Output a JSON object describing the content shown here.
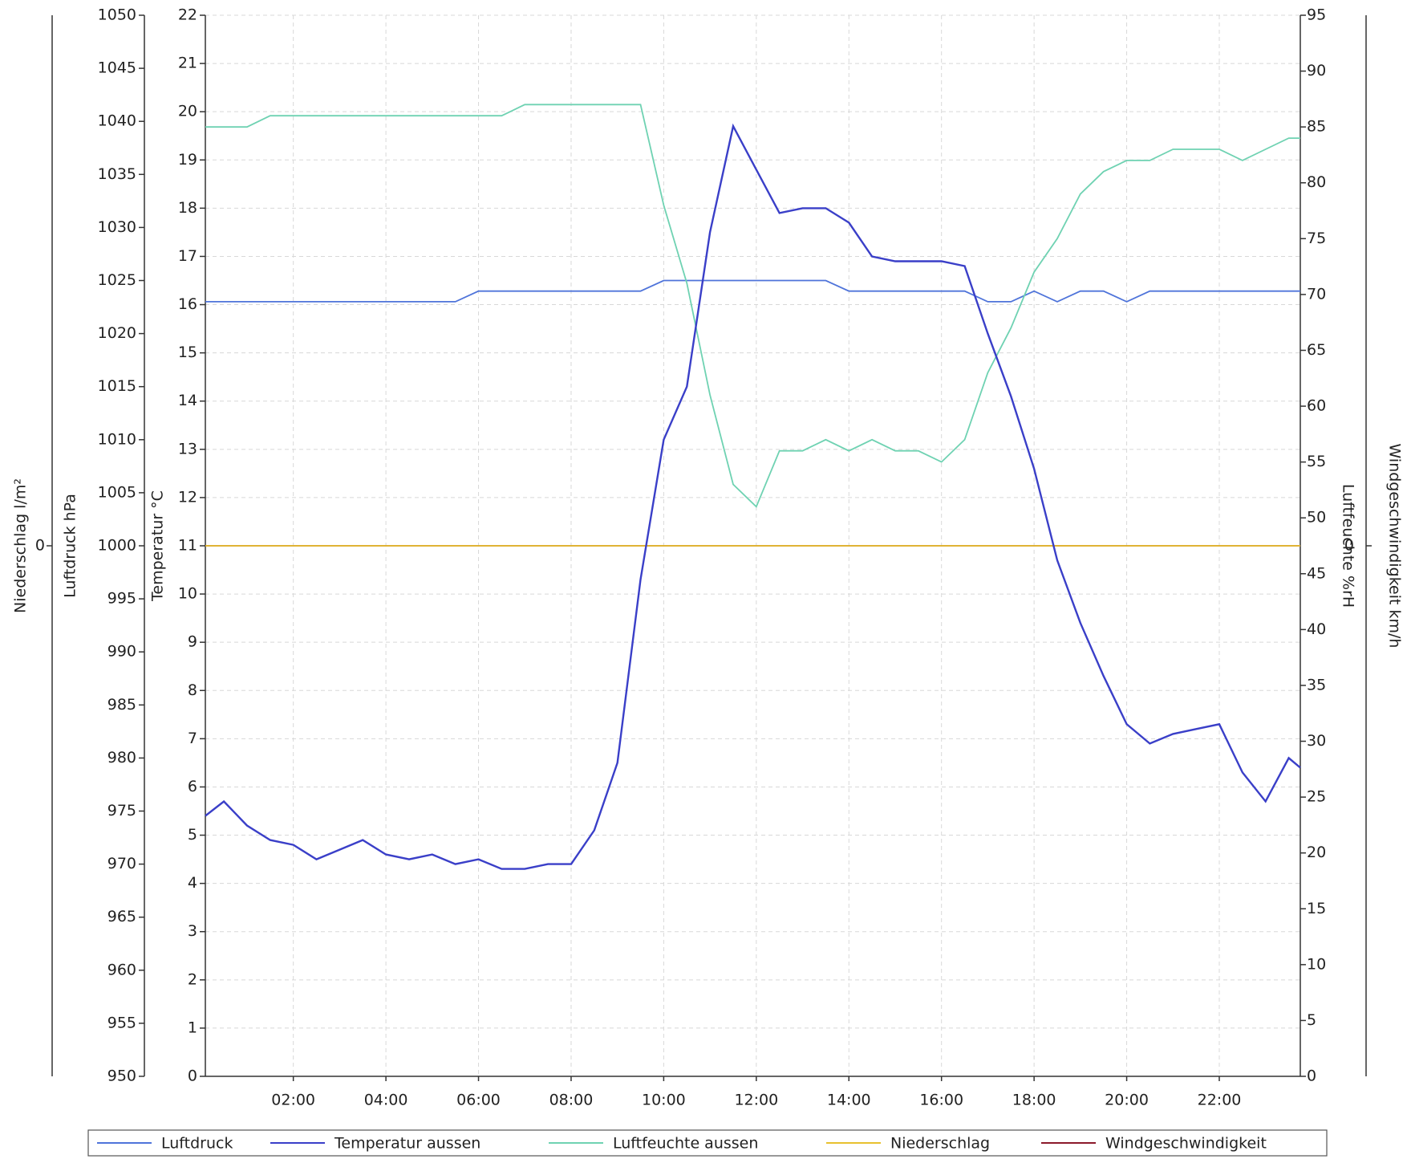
{
  "chart_data": {
    "type": "line",
    "x": [
      0.1,
      0.5,
      1,
      1.5,
      2,
      2.5,
      3,
      3.5,
      4,
      4.5,
      5,
      5.5,
      6,
      6.5,
      7,
      7.5,
      8,
      8.5,
      9,
      9.5,
      10,
      10.5,
      11,
      11.5,
      12,
      12.5,
      13,
      13.5,
      14,
      14.5,
      15,
      15.5,
      16,
      16.5,
      17,
      17.5,
      18,
      18.5,
      19,
      19.5,
      20,
      20.5,
      21,
      21.5,
      22,
      22.5,
      23,
      23.5,
      23.75
    ],
    "xlim": [
      0.1,
      23.75
    ],
    "xticks": [
      {
        "value": 2,
        "label": "02:00"
      },
      {
        "value": 4,
        "label": "04:00"
      },
      {
        "value": 6,
        "label": "06:00"
      },
      {
        "value": 8,
        "label": "08:00"
      },
      {
        "value": 10,
        "label": "10:00"
      },
      {
        "value": 12,
        "label": "12:00"
      },
      {
        "value": 14,
        "label": "14:00"
      },
      {
        "value": 16,
        "label": "16:00"
      },
      {
        "value": 18,
        "label": "18:00"
      },
      {
        "value": 20,
        "label": "20:00"
      },
      {
        "value": 22,
        "label": "22:00"
      }
    ],
    "grid": true,
    "axes": [
      {
        "label": "Niederschlag  l/m²",
        "lim": [
          -1,
          1
        ],
        "ticks": [
          0
        ]
      },
      {
        "label": "Luftdruck  hPa",
        "lim": [
          950,
          1050
        ],
        "ticks": [
          950,
          955,
          960,
          965,
          970,
          975,
          980,
          985,
          990,
          995,
          1000,
          1005,
          1010,
          1015,
          1020,
          1025,
          1030,
          1035,
          1040,
          1045,
          1050
        ]
      },
      {
        "label": "Temperatur  °C",
        "lim": [
          0,
          22
        ],
        "ticks": [
          0,
          1,
          2,
          3,
          4,
          5,
          6,
          7,
          8,
          9,
          10,
          11,
          12,
          13,
          14,
          15,
          16,
          17,
          18,
          19,
          20,
          21,
          22
        ]
      },
      {
        "label": "Luftfeuchte  %rH",
        "lim": [
          0,
          95
        ],
        "ticks": [
          0,
          5,
          10,
          15,
          20,
          25,
          30,
          35,
          40,
          45,
          50,
          55,
          60,
          65,
          70,
          75,
          80,
          85,
          90,
          95
        ]
      },
      {
        "label": "Windgeschwindigkeit  km/h",
        "lim": [
          -1,
          1
        ],
        "ticks": [
          0
        ]
      }
    ],
    "series": [
      {
        "name": "Luftdruck",
        "color": "#4f74da",
        "axis": 1,
        "values": [
          1023,
          1023,
          1023,
          1023,
          1023,
          1023,
          1023,
          1023,
          1023,
          1023,
          1023,
          1023,
          1024,
          1024,
          1024,
          1024,
          1024,
          1024,
          1024,
          1024,
          1025,
          1025,
          1025,
          1025,
          1025,
          1025,
          1025,
          1025,
          1024,
          1024,
          1024,
          1024,
          1024,
          1024,
          1023,
          1023,
          1024,
          1023,
          1024,
          1024,
          1023,
          1024,
          1024,
          1024,
          1024,
          1024,
          1024,
          1024,
          1024
        ]
      },
      {
        "name": "Temperatur aussen",
        "color": "#3a3fc8",
        "axis": 2,
        "values": [
          5.4,
          5.7,
          5.2,
          4.9,
          4.8,
          4.5,
          4.7,
          4.9,
          4.6,
          4.5,
          4.6,
          4.4,
          4.5,
          4.3,
          4.3,
          4.4,
          4.4,
          5.1,
          6.5,
          10.3,
          13.2,
          14.3,
          17.5,
          19.7,
          18.8,
          17.9,
          18.0,
          18.0,
          17.7,
          17.0,
          16.9,
          16.9,
          16.9,
          16.8,
          15.4,
          14.1,
          12.6,
          10.7,
          9.4,
          8.3,
          7.3,
          6.9,
          7.1,
          7.2,
          7.3,
          6.3,
          5.7,
          6.6,
          6.4
        ]
      },
      {
        "name": "Luftfeuchte aussen",
        "color": "#6fd2b2",
        "axis": 3,
        "values": [
          85,
          85,
          85,
          86,
          86,
          86,
          86,
          86,
          86,
          86,
          86,
          86,
          86,
          86,
          87,
          87,
          87,
          87,
          87,
          87,
          78,
          71,
          61,
          53,
          51,
          56,
          56,
          57,
          56,
          57,
          56,
          56,
          55,
          57,
          63,
          67,
          72,
          75,
          79,
          81,
          82,
          82,
          83,
          83,
          83,
          82,
          83,
          84,
          84
        ]
      },
      {
        "name": "Niederschlag",
        "color": "#e8c12f",
        "axis": 0,
        "values": [
          0,
          0,
          0,
          0,
          0,
          0,
          0,
          0,
          0,
          0,
          0,
          0,
          0,
          0,
          0,
          0,
          0,
          0,
          0,
          0,
          0,
          0,
          0,
          0,
          0,
          0,
          0,
          0,
          0,
          0,
          0,
          0,
          0,
          0,
          0,
          0,
          0,
          0,
          0,
          0,
          0,
          0,
          0,
          0,
          0,
          0,
          0,
          0,
          0
        ]
      },
      {
        "name": "Windgeschwindigkeit",
        "color": "#8b1a2b",
        "axis": 4,
        "values": [
          0,
          0,
          0,
          0,
          0,
          0,
          0,
          0,
          0,
          0,
          0,
          0,
          0,
          0,
          0,
          0,
          0,
          0,
          0,
          0,
          0,
          0,
          0,
          0,
          0,
          0,
          0,
          0,
          0,
          0,
          0,
          0,
          0,
          0,
          0,
          0,
          0,
          0,
          0,
          0,
          0,
          0,
          0,
          0,
          0,
          0,
          0,
          0,
          0
        ]
      }
    ]
  }
}
